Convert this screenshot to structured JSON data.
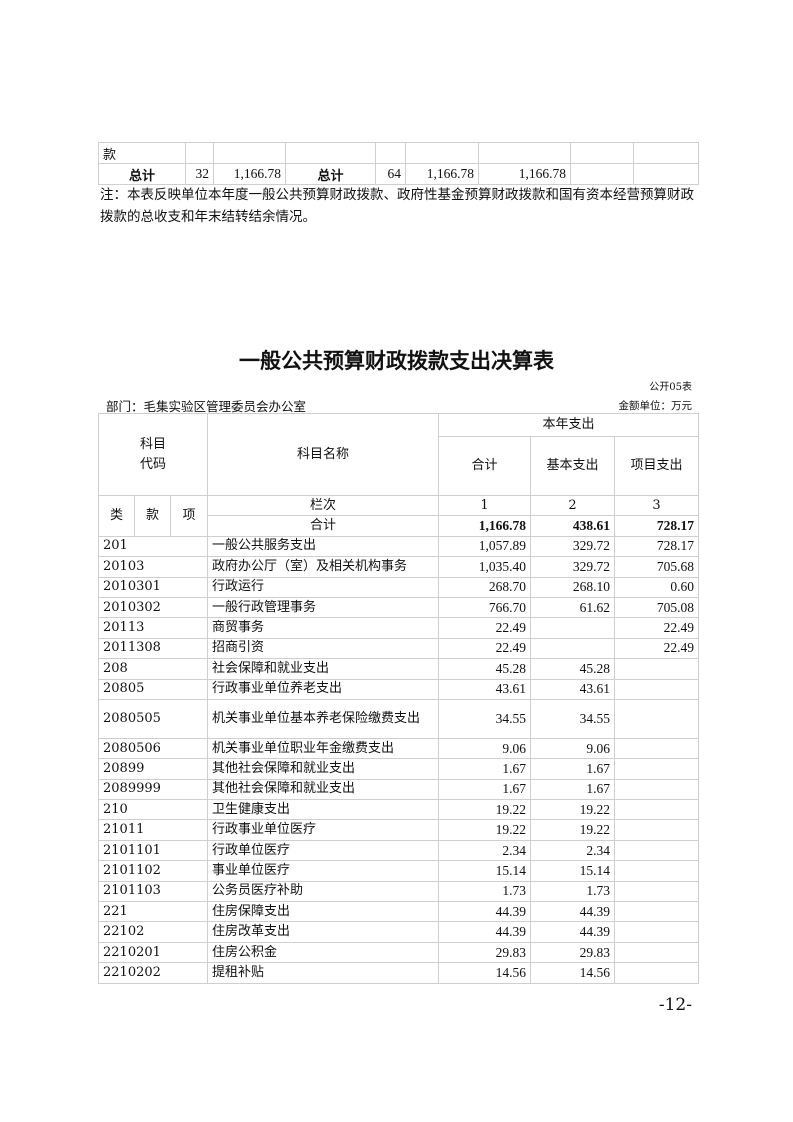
{
  "prev_table": {
    "row_fragment": "款",
    "total_row": [
      "总计",
      "32",
      "1,166.78",
      "总计",
      "64",
      "1,166.78",
      "1,166.78",
      "",
      ""
    ]
  },
  "note": "注：本表反映单位本年度一般公共预算财政拨款、政府性基金预算财政拨款和国有资本经营预算财政拨款的总收支和年末结转结余情况。",
  "title": "一般公共预算财政拨款支出决算表",
  "table_code": "公开05表",
  "department": "部门：毛集实验区管理委员会办公室",
  "unit": "金额单位：万元",
  "header": {
    "code": "科目\n代码",
    "name": "科目名称",
    "year_expense": "本年支出",
    "total": "合计",
    "basic": "基本支出",
    "project": "项目支出",
    "lei": "类",
    "kuan": "款",
    "xiang": "项",
    "col_index": "栏次",
    "idx1": "1",
    "idx2": "2",
    "idx3": "3",
    "sum_label": "合计",
    "sum_total": "1,166.78",
    "sum_basic": "438.61",
    "sum_project": "728.17"
  },
  "rows": [
    {
      "code": "201",
      "name": "一般公共服务支出",
      "total": "1,057.89",
      "basic": "329.72",
      "project": "728.17"
    },
    {
      "code": "20103",
      "name": "政府办公厅（室）及相关机构事务",
      "total": "1,035.40",
      "basic": "329.72",
      "project": "705.68"
    },
    {
      "code": "2010301",
      "name": "行政运行",
      "total": "268.70",
      "basic": "268.10",
      "project": "0.60"
    },
    {
      "code": "2010302",
      "name": "一般行政管理事务",
      "total": "766.70",
      "basic": "61.62",
      "project": "705.08"
    },
    {
      "code": "20113",
      "name": "商贸事务",
      "total": "22.49",
      "basic": "",
      "project": "22.49"
    },
    {
      "code": "2011308",
      "name": "招商引资",
      "total": "22.49",
      "basic": "",
      "project": "22.49"
    },
    {
      "code": "208",
      "name": "社会保障和就业支出",
      "total": "45.28",
      "basic": "45.28",
      "project": ""
    },
    {
      "code": "20805",
      "name": "行政事业单位养老支出",
      "total": "43.61",
      "basic": "43.61",
      "project": ""
    },
    {
      "code": "2080505",
      "name": "机关事业单位基本养老保险缴费支出",
      "total": "34.55",
      "basic": "34.55",
      "project": ""
    },
    {
      "code": "2080506",
      "name": "机关事业单位职业年金缴费支出",
      "total": "9.06",
      "basic": "9.06",
      "project": ""
    },
    {
      "code": "20899",
      "name": "其他社会保障和就业支出",
      "total": "1.67",
      "basic": "1.67",
      "project": ""
    },
    {
      "code": "2089999",
      "name": "其他社会保障和就业支出",
      "total": "1.67",
      "basic": "1.67",
      "project": ""
    },
    {
      "code": "210",
      "name": "卫生健康支出",
      "total": "19.22",
      "basic": "19.22",
      "project": ""
    },
    {
      "code": "21011",
      "name": "行政事业单位医疗",
      "total": "19.22",
      "basic": "19.22",
      "project": ""
    },
    {
      "code": "2101101",
      "name": "行政单位医疗",
      "total": "2.34",
      "basic": "2.34",
      "project": ""
    },
    {
      "code": "2101102",
      "name": "事业单位医疗",
      "total": "15.14",
      "basic": "15.14",
      "project": ""
    },
    {
      "code": "2101103",
      "name": "公务员医疗补助",
      "total": "1.73",
      "basic": "1.73",
      "project": ""
    },
    {
      "code": "221",
      "name": "住房保障支出",
      "total": "44.39",
      "basic": "44.39",
      "project": ""
    },
    {
      "code": "22102",
      "name": "住房改革支出",
      "total": "44.39",
      "basic": "44.39",
      "project": ""
    },
    {
      "code": "2210201",
      "name": "住房公积金",
      "total": "29.83",
      "basic": "29.83",
      "project": ""
    },
    {
      "code": "2210202",
      "name": "提租补贴",
      "total": "14.56",
      "basic": "14.56",
      "project": ""
    }
  ],
  "page_number": "-12-"
}
